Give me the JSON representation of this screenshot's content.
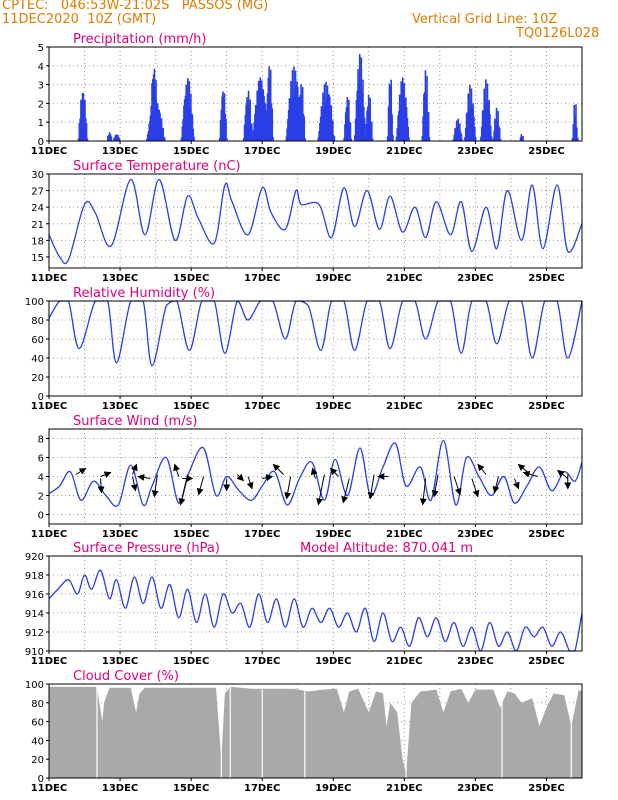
{
  "header": {
    "line1": "CPTEC:   046:53W-21:02S   PASSOS (MG)",
    "line2": "11DEC2020  10Z (GMT)",
    "grid_note": "Vertical Grid Line: 10Z",
    "code": "TQ0126L028"
  },
  "colors": {
    "header": "#e07b00",
    "title": "#e0007a",
    "series": "#2a3fe8",
    "cloud": "#a9a9a9",
    "arrow": "#000000"
  },
  "date_labels": [
    "11DEC",
    "13DEC",
    "15DEC",
    "17DEC",
    "19DEC",
    "21DEC",
    "23DEC",
    "25DEC"
  ],
  "chart_data": [
    {
      "type": "bar",
      "title": "Precipitation (mm/h)",
      "ylim": [
        0,
        5
      ],
      "yticks": [
        0,
        1,
        2,
        3,
        4,
        5
      ],
      "x_start_day": 0,
      "x_end_day": 15,
      "events": [
        {
          "day": 0.95,
          "width": 0.25,
          "peak": 2.9
        },
        {
          "day": 1.7,
          "width": 0.15,
          "peak": 0.5
        },
        {
          "day": 1.9,
          "width": 0.2,
          "peak": 0.4
        },
        {
          "day": 2.95,
          "width": 0.25,
          "peak": 4.2
        },
        {
          "day": 3.0,
          "width": 0.5,
          "peak": 2.2
        },
        {
          "day": 3.9,
          "width": 0.35,
          "peak": 3.4
        },
        {
          "day": 4.9,
          "width": 0.2,
          "peak": 3.0
        },
        {
          "day": 5.6,
          "width": 0.25,
          "peak": 2.8
        },
        {
          "day": 5.95,
          "width": 0.45,
          "peak": 3.4
        },
        {
          "day": 6.2,
          "width": 0.2,
          "peak": 4.4
        },
        {
          "day": 6.9,
          "width": 0.45,
          "peak": 4.0
        },
        {
          "day": 7.1,
          "width": 0.2,
          "peak": 3.3
        },
        {
          "day": 7.8,
          "width": 0.45,
          "peak": 3.2
        },
        {
          "day": 8.4,
          "width": 0.2,
          "peak": 2.5
        },
        {
          "day": 8.75,
          "width": 0.3,
          "peak": 4.7
        },
        {
          "day": 9.0,
          "width": 0.2,
          "peak": 2.6
        },
        {
          "day": 9.6,
          "width": 0.15,
          "peak": 3.8
        },
        {
          "day": 9.95,
          "width": 0.35,
          "peak": 3.4
        },
        {
          "day": 10.6,
          "width": 0.2,
          "peak": 3.9
        },
        {
          "day": 11.5,
          "width": 0.25,
          "peak": 1.2
        },
        {
          "day": 11.85,
          "width": 0.3,
          "peak": 3.0
        },
        {
          "day": 12.3,
          "width": 0.3,
          "peak": 3.3
        },
        {
          "day": 12.6,
          "width": 0.2,
          "peak": 1.8
        },
        {
          "day": 13.3,
          "width": 0.12,
          "peak": 0.4
        },
        {
          "day": 14.8,
          "width": 0.15,
          "peak": 2.2
        }
      ]
    },
    {
      "type": "line",
      "title": "Surface Temperature (nC)",
      "ylim": [
        13,
        30
      ],
      "yticks": [
        15,
        18,
        21,
        24,
        27,
        30
      ],
      "x_start_day": 0,
      "x_end_day": 15,
      "x": [
        0,
        0.3,
        0.55,
        1.0,
        1.3,
        1.75,
        2.3,
        2.7,
        3.1,
        3.55,
        3.9,
        4.2,
        4.65,
        4.95,
        5.15,
        5.6,
        6.0,
        6.25,
        6.65,
        6.95,
        7.1,
        7.6,
        7.95,
        8.3,
        8.6,
        8.95,
        9.3,
        9.6,
        9.95,
        10.3,
        10.6,
        10.9,
        11.3,
        11.6,
        11.9,
        12.3,
        12.6,
        12.9,
        13.3,
        13.6,
        13.9,
        14.3,
        14.6,
        15.0
      ],
      "y": [
        19,
        15,
        14.5,
        24.5,
        23,
        17,
        29,
        19,
        29,
        18,
        26,
        22,
        17.5,
        28,
        25,
        19,
        27.5,
        23,
        20,
        27,
        24.5,
        24.5,
        18.5,
        27.5,
        20.5,
        27,
        20,
        26,
        19.5,
        24,
        18.5,
        25,
        19,
        25,
        16,
        24,
        16.5,
        27,
        18,
        28,
        16.5,
        28,
        16,
        21
      ]
    },
    {
      "type": "line",
      "title": "Relative Humidity (%)",
      "ylim": [
        0,
        100
      ],
      "yticks": [
        0,
        20,
        40,
        60,
        80,
        100
      ],
      "x_start_day": 0,
      "x_end_day": 15,
      "x": [
        0,
        0.3,
        0.55,
        0.85,
        1.3,
        1.65,
        1.9,
        2.3,
        2.65,
        2.9,
        3.3,
        3.6,
        3.95,
        4.3,
        4.65,
        4.95,
        5.3,
        5.6,
        5.95,
        6.3,
        6.65,
        6.95,
        7.3,
        7.65,
        7.95,
        8.3,
        8.6,
        8.95,
        9.3,
        9.6,
        9.95,
        10.3,
        10.6,
        10.95,
        11.3,
        11.6,
        11.9,
        12.3,
        12.6,
        12.95,
        13.3,
        13.6,
        13.95,
        14.3,
        14.6,
        15.0
      ],
      "y": [
        82,
        100,
        100,
        50,
        100,
        100,
        35,
        100,
        100,
        32,
        95,
        100,
        48,
        100,
        100,
        45,
        100,
        80,
        100,
        100,
        60,
        100,
        95,
        48,
        100,
        100,
        48,
        100,
        100,
        50,
        100,
        100,
        60,
        100,
        100,
        45,
        100,
        100,
        55,
        100,
        100,
        40,
        100,
        100,
        40,
        100
      ]
    },
    {
      "type": "line",
      "title": "Surface Wind (m/s)",
      "ylim": [
        -1,
        9
      ],
      "yticks": [
        0,
        2,
        4,
        6,
        8
      ],
      "x_start_day": 0,
      "x_end_day": 15,
      "x": [
        0,
        0.3,
        0.6,
        0.9,
        1.25,
        1.6,
        1.95,
        2.3,
        2.65,
        2.9,
        3.3,
        3.65,
        3.95,
        4.35,
        4.7,
        5.0,
        5.35,
        5.7,
        6.0,
        6.35,
        6.7,
        7.05,
        7.4,
        7.75,
        8.05,
        8.4,
        8.75,
        9.05,
        9.4,
        9.75,
        10.05,
        10.45,
        10.75,
        11.1,
        11.45,
        11.75,
        12.1,
        12.45,
        12.8,
        13.1,
        13.45,
        13.8,
        14.15,
        14.5,
        14.8,
        15.0
      ],
      "y": [
        2.2,
        3,
        4.5,
        1.5,
        3.5,
        2,
        1,
        5.2,
        1,
        3,
        6,
        1.2,
        4.5,
        7,
        2,
        4,
        2.5,
        1.5,
        3,
        4.5,
        1,
        3.8,
        5.5,
        1.5,
        5.8,
        2,
        7,
        2,
        5,
        7.5,
        3,
        5,
        1.5,
        7.8,
        1,
        6,
        4,
        2,
        4,
        1.2,
        3,
        5,
        2.5,
        4.5,
        3.5,
        5.5
      ],
      "arrows": [
        {
          "day": 0.75,
          "dx": 10,
          "dy": -6
        },
        {
          "day": 1.45,
          "dx": 10,
          "dy": -4
        },
        {
          "day": 1.45,
          "dx": 1,
          "dy": 14
        },
        {
          "day": 2.35,
          "dx": 4,
          "dy": -10
        },
        {
          "day": 2.35,
          "dx": 3,
          "dy": 14
        },
        {
          "day": 2.85,
          "dx": -12,
          "dy": -2
        },
        {
          "day": 3.05,
          "dx": -3,
          "dy": 22
        },
        {
          "day": 3.65,
          "dx": -4,
          "dy": -12
        },
        {
          "day": 3.75,
          "dx": 10,
          "dy": 0
        },
        {
          "day": 3.9,
          "dx": -7,
          "dy": 30
        },
        {
          "day": 4.35,
          "dx": -5,
          "dy": 18
        },
        {
          "day": 5.0,
          "dx": 0,
          "dy": 12
        },
        {
          "day": 5.3,
          "dx": 6,
          "dy": 6
        },
        {
          "day": 5.6,
          "dx": 4,
          "dy": 12
        },
        {
          "day": 6.0,
          "dx": 10,
          "dy": -2
        },
        {
          "day": 6.6,
          "dx": -10,
          "dy": -10
        },
        {
          "day": 6.8,
          "dx": -4,
          "dy": 22
        },
        {
          "day": 7.5,
          "dx": -3,
          "dy": -10
        },
        {
          "day": 7.75,
          "dx": -6,
          "dy": 30
        },
        {
          "day": 8.15,
          "dx": -8,
          "dy": -8
        },
        {
          "day": 8.45,
          "dx": -6,
          "dy": 24
        },
        {
          "day": 9.15,
          "dx": -4,
          "dy": 24
        },
        {
          "day": 9.55,
          "dx": -10,
          "dy": 0
        },
        {
          "day": 10.6,
          "dx": -3,
          "dy": 26
        },
        {
          "day": 10.95,
          "dx": -4,
          "dy": 22
        },
        {
          "day": 11.4,
          "dx": 6,
          "dy": 18
        },
        {
          "day": 11.9,
          "dx": 6,
          "dy": 18
        },
        {
          "day": 12.3,
          "dx": -8,
          "dy": -10
        },
        {
          "day": 12.65,
          "dx": -4,
          "dy": 16
        },
        {
          "day": 13.1,
          "dx": 4,
          "dy": 10
        },
        {
          "day": 13.55,
          "dx": -12,
          "dy": -10
        },
        {
          "day": 13.75,
          "dx": -14,
          "dy": -4
        },
        {
          "day": 14.6,
          "dx": -10,
          "dy": -8
        },
        {
          "day": 14.6,
          "dx": 0,
          "dy": 14
        }
      ]
    },
    {
      "type": "line",
      "title": "Surface Pressure (hPa)",
      "annotation": "Model Altitude: 870.041 m",
      "ylim": [
        910,
        920
      ],
      "yticks": [
        910,
        912,
        914,
        916,
        918,
        920
      ],
      "x_start_day": 0,
      "x_end_day": 15,
      "x": [
        0,
        0.25,
        0.55,
        0.8,
        1.0,
        1.2,
        1.45,
        1.7,
        1.9,
        2.15,
        2.4,
        2.65,
        2.9,
        3.15,
        3.4,
        3.65,
        3.9,
        4.15,
        4.4,
        4.65,
        4.9,
        5.15,
        5.4,
        5.65,
        5.9,
        6.15,
        6.4,
        6.65,
        6.9,
        7.15,
        7.4,
        7.65,
        7.9,
        8.15,
        8.4,
        8.65,
        8.9,
        9.15,
        9.4,
        9.65,
        9.9,
        10.15,
        10.4,
        10.65,
        10.9,
        11.15,
        11.4,
        11.65,
        11.9,
        12.15,
        12.4,
        12.65,
        12.9,
        13.15,
        13.4,
        13.65,
        13.9,
        14.15,
        14.4,
        14.65,
        14.8,
        15.0
      ],
      "y": [
        915.5,
        916.5,
        917.5,
        916,
        918,
        916.5,
        918.5,
        915.5,
        917.5,
        914.5,
        917.8,
        915,
        917.8,
        914.5,
        917,
        913.5,
        916.5,
        913,
        916,
        912.5,
        916,
        914,
        915,
        912.5,
        916,
        913,
        915.5,
        912.5,
        915.5,
        912.5,
        914.5,
        913,
        914.5,
        912.5,
        914,
        912,
        914.5,
        911,
        914,
        911,
        912.5,
        910.5,
        913.5,
        911.5,
        913.5,
        911,
        913,
        910.5,
        912.5,
        910,
        913,
        910.5,
        912,
        910,
        912.5,
        911.5,
        912.5,
        910.5,
        912,
        910,
        910,
        914
      ]
    },
    {
      "type": "bar",
      "title": "Cloud Cover (%)",
      "ylim": [
        0,
        100
      ],
      "yticks": [
        0,
        20,
        40,
        60,
        80,
        100
      ],
      "x_start_day": 0,
      "x_end_day": 15,
      "profile": [
        [
          0,
          97
        ],
        [
          1.35,
          97
        ],
        [
          1.5,
          60
        ],
        [
          1.55,
          80
        ],
        [
          1.7,
          96
        ],
        [
          2.3,
          96
        ],
        [
          2.45,
          70
        ],
        [
          2.55,
          90
        ],
        [
          2.7,
          96
        ],
        [
          4.7,
          96
        ],
        [
          4.85,
          20
        ],
        [
          4.95,
          90
        ],
        [
          5.1,
          97
        ],
        [
          5.4,
          96
        ],
        [
          5.7,
          95
        ],
        [
          6.2,
          95
        ],
        [
          6.9,
          95
        ],
        [
          7.3,
          92
        ],
        [
          7.7,
          94
        ],
        [
          8.1,
          95
        ],
        [
          8.3,
          70
        ],
        [
          8.45,
          92
        ],
        [
          8.7,
          95
        ],
        [
          9.0,
          70
        ],
        [
          9.2,
          92
        ],
        [
          9.4,
          90
        ],
        [
          9.5,
          55
        ],
        [
          9.6,
          80
        ],
        [
          9.8,
          70
        ],
        [
          9.95,
          20
        ],
        [
          10.05,
          5
        ],
        [
          10.2,
          80
        ],
        [
          10.45,
          92
        ],
        [
          10.9,
          94
        ],
        [
          11.1,
          70
        ],
        [
          11.3,
          92
        ],
        [
          11.6,
          95
        ],
        [
          11.8,
          80
        ],
        [
          12.0,
          94
        ],
        [
          12.5,
          94
        ],
        [
          12.7,
          75
        ],
        [
          12.9,
          92
        ],
        [
          13.1,
          90
        ],
        [
          13.3,
          80
        ],
        [
          13.6,
          85
        ],
        [
          13.8,
          55
        ],
        [
          14.0,
          75
        ],
        [
          14.2,
          90
        ],
        [
          14.5,
          88
        ],
        [
          14.7,
          55
        ],
        [
          14.9,
          93
        ],
        [
          15.0,
          93
        ]
      ]
    }
  ]
}
